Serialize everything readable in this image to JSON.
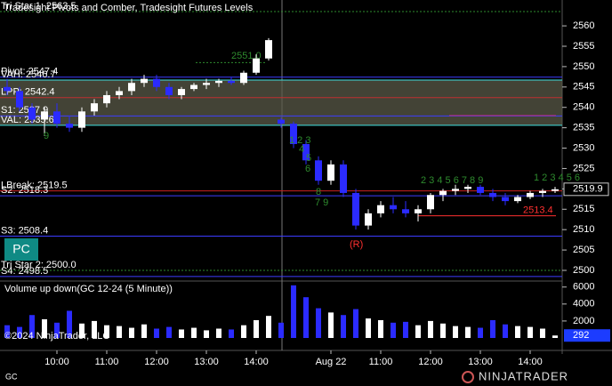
{
  "chart_data": [
    {
      "type": "candlestick",
      "title": "Tradesight Pivots and Comber, Tradesight Futures Levels",
      "ylim": [
        2497.6,
        2564.6
      ],
      "yticks": [
        2500,
        2505,
        2510,
        2515,
        2520,
        2525,
        2530,
        2535,
        2540,
        2545,
        2550,
        2555,
        2560
      ],
      "xticks": [
        {
          "value": 4,
          "label": "10:00"
        },
        {
          "value": 8,
          "label": "11:00"
        },
        {
          "value": 12,
          "label": "12:00"
        },
        {
          "value": 16,
          "label": "13:00"
        },
        {
          "value": 20,
          "label": "14:00"
        },
        {
          "value": 26,
          "label": "Aug 22"
        },
        {
          "value": 30,
          "label": "11:00"
        },
        {
          "value": 34,
          "label": "12:00"
        },
        {
          "value": 38,
          "label": "13:00"
        },
        {
          "value": 42,
          "label": "14:00"
        }
      ],
      "up_color": "#ffffff",
      "down_color": "#2b2bff",
      "open": [
        2545,
        2544,
        2540,
        2537,
        2539,
        2536,
        2535,
        2539,
        2541,
        2543,
        2544,
        2546,
        2547,
        2545,
        2543,
        2544.5,
        2545.5,
        2546,
        2546.5,
        2546,
        2548.5,
        2552,
        2537,
        2536,
        2531,
        2527,
        2522,
        2526,
        2519,
        2511,
        2514,
        2516,
        2515,
        2514,
        2515,
        2518.5,
        2519.5,
        2520,
        2520.5,
        2519,
        2518,
        2517,
        2518,
        2519,
        2519.5
      ],
      "high": [
        2547,
        2545,
        2541,
        2540,
        2541,
        2538,
        2540,
        2542,
        2544,
        2545,
        2547,
        2548,
        2548,
        2546,
        2545,
        2546,
        2547,
        2547,
        2547.5,
        2549,
        2553,
        2557,
        2537.5,
        2536.5,
        2532,
        2528,
        2527,
        2527,
        2520,
        2515,
        2517,
        2518,
        2517,
        2516,
        2519,
        2520,
        2521,
        2521,
        2521,
        2520,
        2519,
        2518.5,
        2519.5,
        2520,
        2520.5
      ],
      "low": [
        2543,
        2539,
        2536,
        2533,
        2535,
        2534,
        2534,
        2538,
        2540,
        2542,
        2543,
        2545,
        2544,
        2542,
        2542,
        2544,
        2544.5,
        2545,
        2545.5,
        2545.5,
        2548,
        2551.5,
        2535,
        2530,
        2526,
        2521,
        2521,
        2518,
        2510,
        2510,
        2513,
        2514,
        2513,
        2512,
        2514,
        2517,
        2518.5,
        2519,
        2518.5,
        2517,
        2516,
        2516.5,
        2517.5,
        2518,
        2519
      ],
      "close": [
        2544,
        2540,
        2537,
        2539,
        2536,
        2535,
        2539,
        2541,
        2543,
        2544,
        2546,
        2547,
        2545,
        2543,
        2544.5,
        2545.5,
        2546,
        2546.5,
        2546,
        2548.5,
        2552,
        2556.5,
        2536,
        2531,
        2527,
        2522,
        2526,
        2519,
        2511,
        2514,
        2516,
        2515,
        2514,
        2515,
        2518.5,
        2519.5,
        2520,
        2520.5,
        2519,
        2518,
        2517,
        2518,
        2519,
        2519.5,
        2519.9
      ],
      "last": 2519.9,
      "levels": [
        {
          "label": "Tri Star 1: 2563.5",
          "value": 2563.5,
          "color": "#2e8b2e"
        },
        {
          "label": "Pivot: 2547.4",
          "value": 2547.4,
          "color": "#3c3cff"
        },
        {
          "label": "VAH: 2546.7",
          "value": 2546.7,
          "color": "#40e0e0"
        },
        {
          "label": "LPP: 2542.4",
          "value": 2542.4,
          "color": "#c03030"
        },
        {
          "label": "S1: 2537.9",
          "value": 2537.9,
          "color": "#3c3cff"
        },
        {
          "label": "VAL: 2535.6",
          "value": 2535.6,
          "color": "#40e0e0"
        },
        {
          "label": "LBreak: 2519.5",
          "value": 2519.5,
          "color": "#cc2020"
        },
        {
          "label": "S2: 2518.3",
          "value": 2518.3,
          "color": "#3c3cff"
        },
        {
          "label": "S3: 2508.4",
          "value": 2508.4,
          "color": "#3c3cff"
        },
        {
          "label": "Tri Star 2: 2500.0",
          "value": 2500,
          "color": "#2e8b2e"
        },
        {
          "label": "S4: 2498.5",
          "value": 2498.5,
          "color": "#3c3cff"
        }
      ],
      "segments": [
        {
          "value": 2551,
          "label": "2551.0",
          "color": "#2e8b2e"
        },
        {
          "value": 2538,
          "color": "#c03080"
        },
        {
          "value": 2513.4,
          "color": "#ff3030"
        }
      ],
      "annotations": [
        "9",
        "1 2 3",
        "4",
        "5",
        "6",
        "8",
        "7 9",
        "(R)",
        "2 3 4 5 6 7 8 9",
        "1 2 3 4 5 6"
      ],
      "badge": "PC"
    },
    {
      "type": "bar",
      "title": "Volume up down(GC 12-24 (5 Minute))",
      "ylim": [
        0,
        6600
      ],
      "yticks": [
        2000,
        4000,
        6000
      ],
      "values": [
        1500,
        1300,
        2700,
        2200,
        1800,
        3200,
        1700,
        2000,
        1500,
        1400,
        1200,
        1600,
        1100,
        1300,
        1000,
        1200,
        900,
        1100,
        1000,
        1500,
        2100,
        2600,
        1800,
        6200,
        4800,
        3500,
        3000,
        2700,
        3400,
        2300,
        2100,
        1800,
        1900,
        1500,
        2000,
        1700,
        1400,
        1300,
        1200,
        2100,
        1600,
        1400,
        1300,
        1100,
        292
      ],
      "last": 292,
      "copyright": "©2024 NinjaTrader, LLC"
    }
  ],
  "footer": {
    "symbol": "GC",
    "logo": "NINJATRADER"
  }
}
